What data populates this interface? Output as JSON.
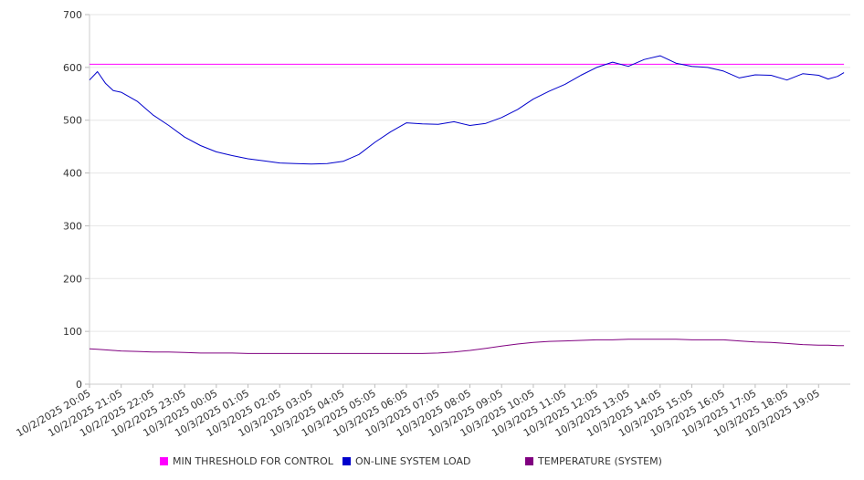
{
  "chart_data": {
    "type": "line",
    "title": "",
    "xlabel": "",
    "ylabel": "",
    "ylim": [
      0,
      700
    ],
    "yticks": [
      0,
      100,
      200,
      300,
      400,
      500,
      600,
      700
    ],
    "grid": true,
    "legend_position": "bottom",
    "x_tick_labels": [
      "10/2/2025 20:05",
      "10/2/2025 21:05",
      "10/2/2025 22:05",
      "10/2/2025 23:05",
      "10/3/2025 00:05",
      "10/3/2025 01:05",
      "10/3/2025 02:05",
      "10/3/2025 03:05",
      "10/3/2025 04:05",
      "10/3/2025 05:05",
      "10/3/2025 06:05",
      "10/3/2025 07:05",
      "10/3/2025 08:05",
      "10/3/2025 09:05",
      "10/3/2025 10:05",
      "10/3/2025 11:05",
      "10/3/2025 12:05",
      "10/3/2025 13:05",
      "10/3/2025 14:05",
      "10/3/2025 15:05",
      "10/3/2025 16:05",
      "10/3/2025 17:05",
      "10/3/2025 18:05",
      "10/3/2025 19:05"
    ],
    "x_hours": [
      0,
      0.25,
      0.5,
      0.75,
      1,
      1.5,
      2,
      2.5,
      3,
      3.5,
      4,
      4.5,
      5,
      5.5,
      6,
      6.5,
      7,
      7.5,
      8,
      8.5,
      9,
      9.5,
      10,
      10.5,
      11,
      11.5,
      12,
      12.5,
      13,
      13.5,
      14,
      14.5,
      15,
      15.5,
      16,
      16.5,
      17,
      17.5,
      18,
      18.5,
      19,
      19.5,
      20,
      20.5,
      21,
      21.5,
      22,
      22.5,
      23,
      23.3,
      23.6,
      23.8
    ],
    "series": [
      {
        "name": "MIN THRESHOLD FOR CONTROL",
        "color": "#ff00ff",
        "values": [
          606,
          606,
          606,
          606,
          606,
          606,
          606,
          606,
          606,
          606,
          606,
          606,
          606,
          606,
          606,
          606,
          606,
          606,
          606,
          606,
          606,
          606,
          606,
          606,
          606,
          606,
          606,
          606,
          606,
          606,
          606,
          606,
          606,
          606,
          606,
          606,
          606,
          606,
          606,
          606,
          606,
          606,
          606,
          606,
          606,
          606,
          606,
          606,
          606,
          606,
          606,
          606
        ]
      },
      {
        "name": "ON-LINE SYSTEM LOAD",
        "color": "#0000cc",
        "values": [
          576,
          592,
          570,
          556,
          553,
          536,
          510,
          490,
          468,
          452,
          440,
          433,
          427,
          423,
          419,
          418,
          417,
          418,
          422,
          435,
          458,
          478,
          495,
          493,
          492,
          497,
          490,
          494,
          505,
          520,
          540,
          555,
          568,
          585,
          600,
          610,
          602,
          615,
          622,
          608,
          602,
          600,
          593,
          580,
          586,
          585,
          576,
          588,
          585,
          578,
          583,
          590
        ]
      },
      {
        "name": "TEMPERATURE (SYSTEM)",
        "color": "#800080",
        "values": [
          67,
          66,
          65,
          64,
          63,
          62,
          61,
          61,
          60,
          59,
          59,
          59,
          58,
          58,
          58,
          58,
          58,
          58,
          58,
          58,
          58,
          58,
          58,
          58,
          59,
          61,
          64,
          68,
          72,
          76,
          79,
          81,
          82,
          83,
          84,
          84,
          85,
          85,
          85,
          85,
          84,
          84,
          84,
          82,
          80,
          79,
          77,
          75,
          74,
          74,
          73,
          73
        ]
      }
    ]
  }
}
